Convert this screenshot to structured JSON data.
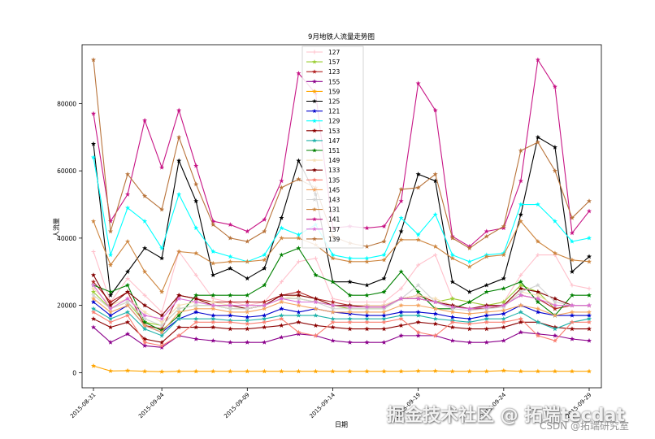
{
  "chart_data": {
    "type": "line",
    "title": "9月地铁人流量走势图",
    "xlabel": "日期",
    "ylabel": "人流量",
    "x": [
      "2015-08-31",
      "2015-09-01",
      "2015-09-02",
      "2015-09-03",
      "2015-09-04",
      "2015-09-05",
      "2015-09-06",
      "2015-09-07",
      "2015-09-08",
      "2015-09-09",
      "2015-09-10",
      "2015-09-11",
      "2015-09-12",
      "2015-09-13",
      "2015-09-14",
      "2015-09-15",
      "2015-09-16",
      "2015-09-17",
      "2015-09-18",
      "2015-09-19",
      "2015-09-20",
      "2015-09-21",
      "2015-09-22",
      "2015-09-23",
      "2015-09-24",
      "2015-09-25",
      "2015-09-26",
      "2015-09-27",
      "2015-09-28",
      "2015-09-29"
    ],
    "xtick_labels": [
      "2015-08-31",
      "2015-09-04",
      "2015-09-09",
      "2015-09-14",
      "2015-09-19",
      "2015-09-24",
      "2015-09-29"
    ],
    "yticks": [
      0,
      20000,
      40000,
      60000,
      80000
    ],
    "ylim": [
      -4500,
      97500
    ],
    "grid": false,
    "legend_position": "top-center",
    "series": [
      {
        "name": "127",
        "color": "#ffc0cb",
        "marker": "+",
        "values": [
          36000,
          21000,
          28000,
          23000,
          18000,
          36000,
          29000,
          22000,
          21000,
          20000,
          21000,
          27000,
          33000,
          34000,
          22000,
          21000,
          21000,
          21000,
          25000,
          32000,
          35000,
          22000,
          21000,
          20000,
          21000,
          29000,
          35000,
          35000,
          26000,
          25000
        ]
      },
      {
        "name": "157",
        "color": "#9acd32",
        "marker": "*",
        "values": [
          24000,
          19000,
          21000,
          15000,
          14000,
          19000,
          20000,
          20000,
          19000,
          19000,
          20000,
          22000,
          22000,
          21000,
          20000,
          19000,
          19000,
          19000,
          22000,
          22000,
          21000,
          22000,
          21000,
          20000,
          21000,
          26000,
          24000,
          19000,
          20000,
          20000
        ]
      },
      {
        "name": "123",
        "color": "#b22222",
        "marker": "*",
        "values": [
          27000,
          21000,
          24000,
          14000,
          13000,
          23000,
          22000,
          21000,
          21000,
          21000,
          21000,
          23000,
          24000,
          22000,
          21000,
          20000,
          20000,
          20000,
          22000,
          23000,
          21000,
          20000,
          19000,
          19000,
          20000,
          23000,
          22000,
          19000,
          20000,
          20000
        ]
      },
      {
        "name": "155",
        "color": "#8b008b",
        "marker": "*",
        "values": [
          13500,
          9000,
          11500,
          8000,
          7500,
          11000,
          10000,
          9500,
          9000,
          9000,
          9000,
          10500,
          11500,
          11000,
          9500,
          9000,
          9000,
          9000,
          11000,
          11000,
          11000,
          9500,
          9000,
          9000,
          9500,
          12000,
          11500,
          11000,
          10000,
          9500
        ]
      },
      {
        "name": "159",
        "color": "#ffa500",
        "marker": "*",
        "values": [
          2000,
          500,
          600,
          400,
          300,
          400,
          400,
          400,
          400,
          400,
          400,
          400,
          400,
          400,
          400,
          400,
          400,
          400,
          400,
          500,
          500,
          400,
          400,
          400,
          600,
          400,
          400,
          400,
          400,
          400
        ]
      },
      {
        "name": "125",
        "color": "#000000",
        "marker": "*",
        "values": [
          68000,
          23000,
          30000,
          37000,
          34000,
          63000,
          51000,
          29000,
          31000,
          28000,
          31000,
          46000,
          63000,
          53000,
          27000,
          27000,
          26000,
          28000,
          42000,
          59000,
          57000,
          27000,
          24000,
          26000,
          28000,
          47000,
          70000,
          67000,
          30000,
          34500
        ]
      },
      {
        "name": "121",
        "color": "#0000cd",
        "marker": "*",
        "values": [
          21000,
          17000,
          20000,
          14000,
          12000,
          16000,
          18000,
          17000,
          17000,
          16500,
          17000,
          19000,
          18000,
          19000,
          18000,
          17500,
          17000,
          17000,
          18000,
          18000,
          17500,
          16500,
          16000,
          17000,
          17500,
          20000,
          18000,
          17000,
          17000,
          17000
        ]
      },
      {
        "name": "129",
        "color": "#00ffff",
        "marker": "*",
        "values": [
          64000,
          35000,
          49000,
          45000,
          37000,
          53000,
          43000,
          36000,
          34500,
          33000,
          35000,
          43000,
          41000,
          44000,
          35000,
          34000,
          34000,
          35000,
          46000,
          41000,
          47000,
          35000,
          33000,
          35000,
          35500,
          50000,
          50000,
          45000,
          39000,
          40000
        ]
      },
      {
        "name": "153",
        "color": "#8b0000",
        "marker": "*",
        "values": [
          16000,
          13500,
          15000,
          10000,
          9000,
          13500,
          13500,
          13500,
          13000,
          13000,
          13500,
          14000,
          15000,
          14000,
          13500,
          13000,
          13000,
          13000,
          14000,
          15000,
          14500,
          13500,
          13000,
          13000,
          13500,
          15000,
          15000,
          13500,
          13000,
          13000
        ]
      },
      {
        "name": "147",
        "color": "#20b2aa",
        "marker": "*",
        "values": [
          19000,
          16000,
          18000,
          13000,
          11000,
          16000,
          16000,
          16000,
          15500,
          15500,
          16000,
          17000,
          17000,
          17000,
          16000,
          16000,
          16000,
          16000,
          17000,
          17000,
          16000,
          15500,
          15000,
          16000,
          16000,
          18000,
          15000,
          13000,
          15000,
          16000
        ]
      },
      {
        "name": "151",
        "color": "#008000",
        "marker": "*",
        "values": [
          26000,
          24000,
          26000,
          15000,
          12500,
          17000,
          23000,
          23000,
          23000,
          23000,
          26000,
          35000,
          37000,
          29000,
          27000,
          23000,
          23000,
          24000,
          30000,
          24000,
          19000,
          19000,
          21000,
          24000,
          25000,
          27000,
          21000,
          17000,
          23000,
          23000
        ]
      },
      {
        "name": "149",
        "color": "#f5deb3",
        "marker": "*",
        "values": [
          25000,
          20000,
          22000,
          18000,
          15000,
          20000,
          21000,
          21000,
          20000,
          20000,
          20000,
          22000,
          23000,
          22000,
          20000,
          20000,
          20000,
          20000,
          22000,
          23000,
          22000,
          20000,
          19000,
          20000,
          20000,
          24000,
          23000,
          20000,
          20000,
          20000
        ]
      },
      {
        "name": "133",
        "color": "#800000",
        "marker": "*",
        "values": [
          29000,
          20000,
          24000,
          20000,
          17000,
          23000,
          22000,
          20000,
          20000,
          19000,
          20000,
          23000,
          23000,
          22000,
          20000,
          20000,
          19500,
          19500,
          22000,
          22000,
          21000,
          20000,
          19000,
          20000,
          20000,
          25000,
          24000,
          22000,
          20000,
          20000
        ]
      },
      {
        "name": "135",
        "color": "#fa8072",
        "marker": "*",
        "values": [
          18000,
          15000,
          17000,
          9000,
          8000,
          11000,
          15000,
          15000,
          15000,
          14500,
          15000,
          16000,
          12000,
          11000,
          15000,
          15000,
          15000,
          15000,
          16000,
          12000,
          11000,
          15000,
          14500,
          15000,
          15000,
          16000,
          11000,
          9500,
          15000,
          15000
        ]
      },
      {
        "name": "145",
        "color": "#f4a460",
        "marker": "*",
        "values": [
          22000,
          18000,
          20000,
          14000,
          12000,
          18000,
          19000,
          19000,
          18000,
          18000,
          19000,
          21000,
          20000,
          19000,
          18000,
          18000,
          18000,
          18000,
          20000,
          20000,
          19000,
          18000,
          17500,
          18000,
          18500,
          20000,
          19000,
          17000,
          18000,
          18000
        ]
      },
      {
        "name": "143",
        "color": "#d3d3d3",
        "marker": "*",
        "values": [
          23000,
          19000,
          21000,
          16000,
          14000,
          19000,
          20000,
          20000,
          19000,
          19000,
          20000,
          22000,
          22000,
          21000,
          19000,
          19000,
          19000,
          19000,
          22000,
          26000,
          21000,
          19000,
          18500,
          19000,
          19500,
          24000,
          26000,
          21000,
          20000,
          20000
        ]
      },
      {
        "name": "131",
        "color": "#cd853f",
        "marker": "*",
        "values": [
          45000,
          32000,
          39000,
          30000,
          24000,
          36000,
          35500,
          32500,
          33000,
          33000,
          33500,
          40000,
          40000,
          38000,
          34000,
          33000,
          33000,
          33500,
          39500,
          39500,
          37500,
          34000,
          31500,
          34500,
          35000,
          45000,
          39000,
          35500,
          33500,
          33000
        ]
      },
      {
        "name": "141",
        "color": "#c71585",
        "marker": "*",
        "values": [
          77000,
          45000,
          53000,
          75000,
          61000,
          78000,
          61500,
          45000,
          44000,
          42000,
          45500,
          57000,
          89000,
          83000,
          43000,
          43500,
          43000,
          43500,
          51000,
          86000,
          78000,
          40500,
          37500,
          42000,
          43000,
          57000,
          93000,
          85000,
          41500,
          48000
        ]
      },
      {
        "name": "137",
        "color": "#da70d6",
        "marker": "*",
        "values": [
          26000,
          19000,
          22000,
          17000,
          16000,
          22000,
          21000,
          20000,
          20000,
          20000,
          20000,
          22000,
          21000,
          21000,
          20000,
          19500,
          19500,
          19500,
          22000,
          22000,
          21000,
          19500,
          19000,
          19500,
          20000,
          23000,
          22000,
          20000,
          20000,
          20000
        ]
      },
      {
        "name": "139",
        "color": "#b8733a",
        "marker": "*",
        "values": [
          93000,
          42000,
          59000,
          52500,
          48500,
          70000,
          56000,
          44000,
          40000,
          39000,
          42000,
          55000,
          57500,
          55000,
          40500,
          38500,
          37500,
          39000,
          54500,
          55000,
          59000,
          40000,
          37000,
          40500,
          43500,
          66000,
          68500,
          60000,
          46000,
          51000
        ]
      }
    ]
  },
  "watermark": {
    "main": "掘金技术社区 @ 拓端tecdat",
    "sub": "CSDN @拓端研究室"
  }
}
